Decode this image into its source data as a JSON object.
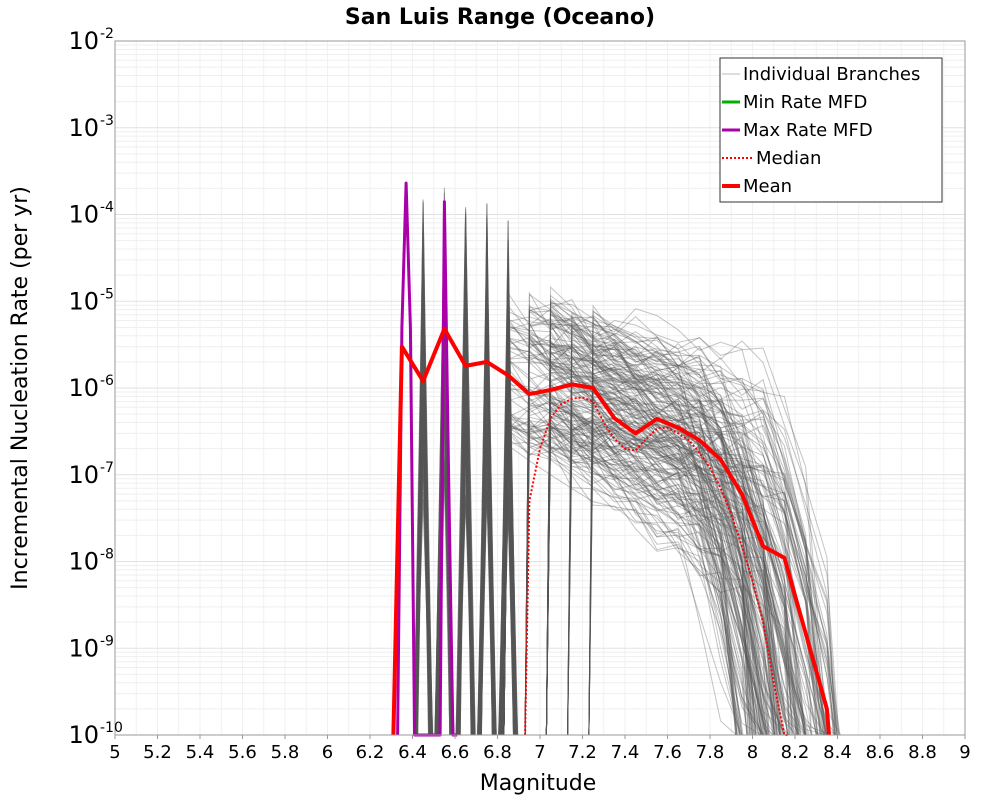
{
  "chart_data": {
    "type": "line",
    "title": "San Luis Range (Oceano)",
    "xlabel": "Magnitude",
    "ylabel": "Incremental Nucleation Rate (per yr)",
    "xlim": [
      5,
      9
    ],
    "ylim_exponents": [
      -10,
      -2
    ],
    "y_scale": "log",
    "grid": true,
    "legend_position": "top-right",
    "x_ticks": [
      "5",
      "5.2",
      "5.4",
      "5.6",
      "5.8",
      "6",
      "6.2",
      "6.4",
      "6.6",
      "6.8",
      "7",
      "7.2",
      "7.4",
      "7.6",
      "7.8",
      "8",
      "8.2",
      "8.4",
      "8.6",
      "8.8",
      "9"
    ],
    "y_tick_base": "10",
    "y_tick_exponents": [
      "-10",
      "-9",
      "-8",
      "-7",
      "-6",
      "-5",
      "-4",
      "-3",
      "-2"
    ],
    "legend": [
      {
        "label": "Individual Branches",
        "color": "#bbbbbb",
        "style": "solid-thin"
      },
      {
        "label": "Min Rate MFD",
        "color": "#00b000",
        "style": "solid"
      },
      {
        "label": "Max Rate MFD",
        "color": "#aa00aa",
        "style": "solid"
      },
      {
        "label": "Median",
        "color": "#ff0000",
        "style": "dotted"
      },
      {
        "label": "Mean",
        "color": "#ff0000",
        "style": "thick"
      }
    ],
    "series": [
      {
        "name": "Max Rate MFD",
        "color": "#aa00aa",
        "x": [
          6.33,
          6.35,
          6.37,
          6.39,
          6.41,
          6.45,
          6.49,
          6.53,
          6.55,
          6.57,
          6.59,
          6.61
        ],
        "y": [
          1e-10,
          5e-06,
          0.00023,
          5e-06,
          1e-10,
          1e-10,
          1e-10,
          1e-10,
          0.00014,
          1e-07,
          1e-10,
          1e-10
        ]
      },
      {
        "name": "Median",
        "color": "#ff0000",
        "x": [
          6.93,
          6.95,
          7.0,
          7.05,
          7.1,
          7.15,
          7.2,
          7.25,
          7.3,
          7.35,
          7.4,
          7.45,
          7.5,
          7.55,
          7.6,
          7.65,
          7.7,
          7.75,
          7.8,
          7.85,
          7.9,
          7.95,
          8.0,
          8.05,
          8.1,
          8.15,
          8.17
        ],
        "y": [
          1e-10,
          5e-08,
          2e-07,
          4.5e-07,
          6.5e-07,
          7.5e-07,
          7.8e-07,
          7e-07,
          4e-07,
          2.6e-07,
          2e-07,
          1.9e-07,
          2.6e-07,
          3.4e-07,
          3.5e-07,
          3e-07,
          2.5e-07,
          1.8e-07,
          1.2e-07,
          7e-08,
          3.5e-08,
          1.5e-08,
          6e-09,
          2e-09,
          4e-10,
          1e-10,
          1e-10
        ]
      },
      {
        "name": "Mean",
        "color": "#ff0000",
        "x": [
          6.31,
          6.35,
          6.45,
          6.55,
          6.65,
          6.75,
          6.85,
          6.95,
          7.05,
          7.15,
          7.25,
          7.35,
          7.45,
          7.55,
          7.65,
          7.75,
          7.85,
          7.95,
          8.05,
          8.15,
          8.25,
          8.35,
          8.36
        ],
        "y": [
          1e-10,
          3e-06,
          1.2e-06,
          4.8e-06,
          1.8e-06,
          2e-06,
          1.4e-06,
          8.5e-07,
          9.5e-07,
          1.1e-06,
          1e-06,
          4.5e-07,
          3e-07,
          4.4e-07,
          3.5e-07,
          2.5e-07,
          1.5e-07,
          6e-08,
          1.5e-08,
          1.1e-08,
          1.5e-09,
          2e-10,
          1e-10
        ]
      }
    ]
  }
}
